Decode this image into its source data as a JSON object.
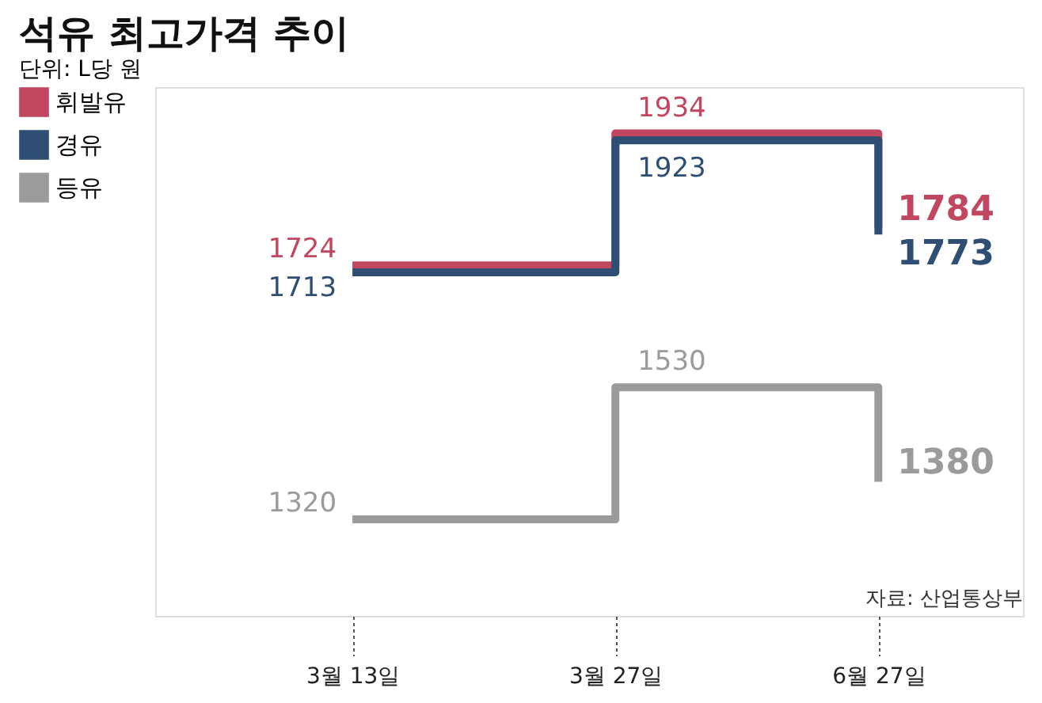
{
  "chart_data": {
    "type": "step",
    "title": "석유 최고가격 추이",
    "subtitle": "단위: L당 원",
    "categories": [
      "3월 13일",
      "3월 27일",
      "6월 27일"
    ],
    "series": [
      {
        "name": "휘발유",
        "color": "#c0475f",
        "values": [
          1724,
          1934,
          1784
        ]
      },
      {
        "name": "경유",
        "color": "#2e4f73",
        "values": [
          1713,
          1923,
          1773
        ]
      },
      {
        "name": "등유",
        "color": "#9b9b9b",
        "values": [
          1320,
          1530,
          1380
        ]
      }
    ],
    "data_labels": true,
    "legend": "left",
    "tick_labels": "x",
    "annotations": [
      "자료: 산업통상부"
    ]
  }
}
